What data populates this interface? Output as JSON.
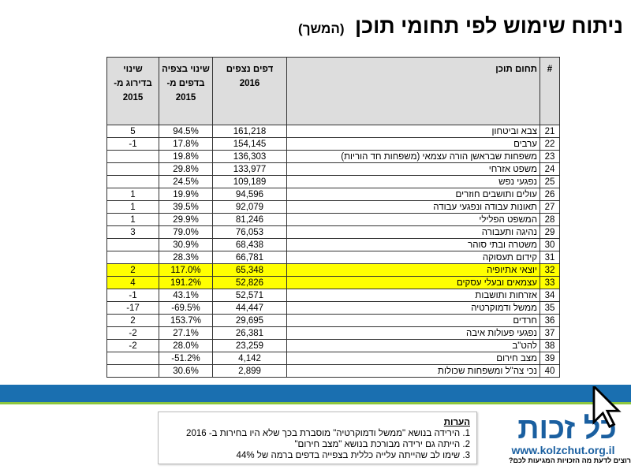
{
  "title": "ניתוח שימוש לפי תחומי תוכן",
  "title_sub": "(המשך)",
  "table": {
    "headers": {
      "num": "#",
      "topic": "תחום תוכן",
      "pages": "דפים נצפים 2016",
      "pct": "שינוי בצפיה בדפים מ- 2015",
      "rank": "שינוי בדירוג מ- 2015"
    },
    "rows": [
      {
        "n": "21",
        "topic": "צבא וביטחון",
        "pages": "161,218",
        "pct": "94.5%",
        "rank": "5"
      },
      {
        "n": "22",
        "topic": "ערבים",
        "pages": "154,145",
        "pct": "17.8%",
        "rank": "-1"
      },
      {
        "n": "23",
        "topic": "משפחות שבראשן הורה עצמאי (משפחות חד הוריות)",
        "pages": "136,303",
        "pct": "19.8%",
        "rank": ""
      },
      {
        "n": "24",
        "topic": "משפט אזרחי",
        "pages": "133,977",
        "pct": "29.8%",
        "rank": ""
      },
      {
        "n": "25",
        "topic": "נפגעי נפש",
        "pages": "109,189",
        "pct": "24.5%",
        "rank": ""
      },
      {
        "n": "26",
        "topic": "עולים ותושבים חוזרים",
        "pages": "94,596",
        "pct": "19.9%",
        "rank": "1"
      },
      {
        "n": "27",
        "topic": "תאונות עבודה ונפגעי עבודה",
        "pages": "92,079",
        "pct": "39.5%",
        "rank": "1"
      },
      {
        "n": "28",
        "topic": "המשפט הפלילי",
        "pages": "81,246",
        "pct": "29.9%",
        "rank": "1"
      },
      {
        "n": "29",
        "topic": "נהיגה ותעבורה",
        "pages": "76,053",
        "pct": "79.0%",
        "rank": "3"
      },
      {
        "n": "30",
        "topic": "משטרה ובתי סוהר",
        "pages": "68,438",
        "pct": "30.9%",
        "rank": ""
      },
      {
        "n": "31",
        "topic": "קידום תעסוקה",
        "pages": "66,781",
        "pct": "28.3%",
        "rank": ""
      },
      {
        "n": "32",
        "topic": "יוצאי אתיופיה",
        "pages": "65,348",
        "pct": "117.0%",
        "rank": "2",
        "highlight": true
      },
      {
        "n": "33",
        "topic": "עצמאים ובעלי עסקים",
        "pages": "52,826",
        "pct": "191.2%",
        "rank": "4",
        "highlight": true
      },
      {
        "n": "34",
        "topic": "אזרחות ותושבות",
        "pages": "52,571",
        "pct": "43.1%",
        "rank": "-1"
      },
      {
        "n": "35",
        "topic": "ממשל ודמוקרטיה",
        "pages": "44,447",
        "pct": "-69.5%",
        "rank": "-17"
      },
      {
        "n": "36",
        "topic": "חרדים",
        "pages": "29,695",
        "pct": "153.7%",
        "rank": "2"
      },
      {
        "n": "37",
        "topic": "נפגעי פעולות איבה",
        "pages": "26,381",
        "pct": "27.1%",
        "rank": "-2"
      },
      {
        "n": "38",
        "topic": "להט\"ב",
        "pages": "23,259",
        "pct": "28.0%",
        "rank": "-2"
      },
      {
        "n": "39",
        "topic": "מצב חירום",
        "pages": "4,142",
        "pct": "-51.2%",
        "rank": ""
      },
      {
        "n": "40",
        "topic": "נכי צה\"ל ומשפחות שכולות",
        "pages": "2,899",
        "pct": "30.6%",
        "rank": ""
      }
    ]
  },
  "notes": {
    "heading": "הערות",
    "items": [
      "1. הירידה בנושא \"ממשל ודמוקרטיה\" מוסברת בכך שלא היו בחירות ב- 2016",
      "2. הייתה גם ירידה מבורכת בנושא \"מצב חירום\"",
      "3. שימו לב שהייתה עלייה כללית בצפייה בדפים ברמה של 44%"
    ]
  },
  "logo": {
    "name": "כל זכות",
    "url": "www.kolzchut.org.il",
    "tagline": "רוצים לדעת מה הזכויות המגיעות לכם?"
  },
  "colors": {
    "highlight": "#ffff00",
    "band": "#1a6fb0",
    "accent": "#8cc63f",
    "brand": "#1a5fa0"
  }
}
